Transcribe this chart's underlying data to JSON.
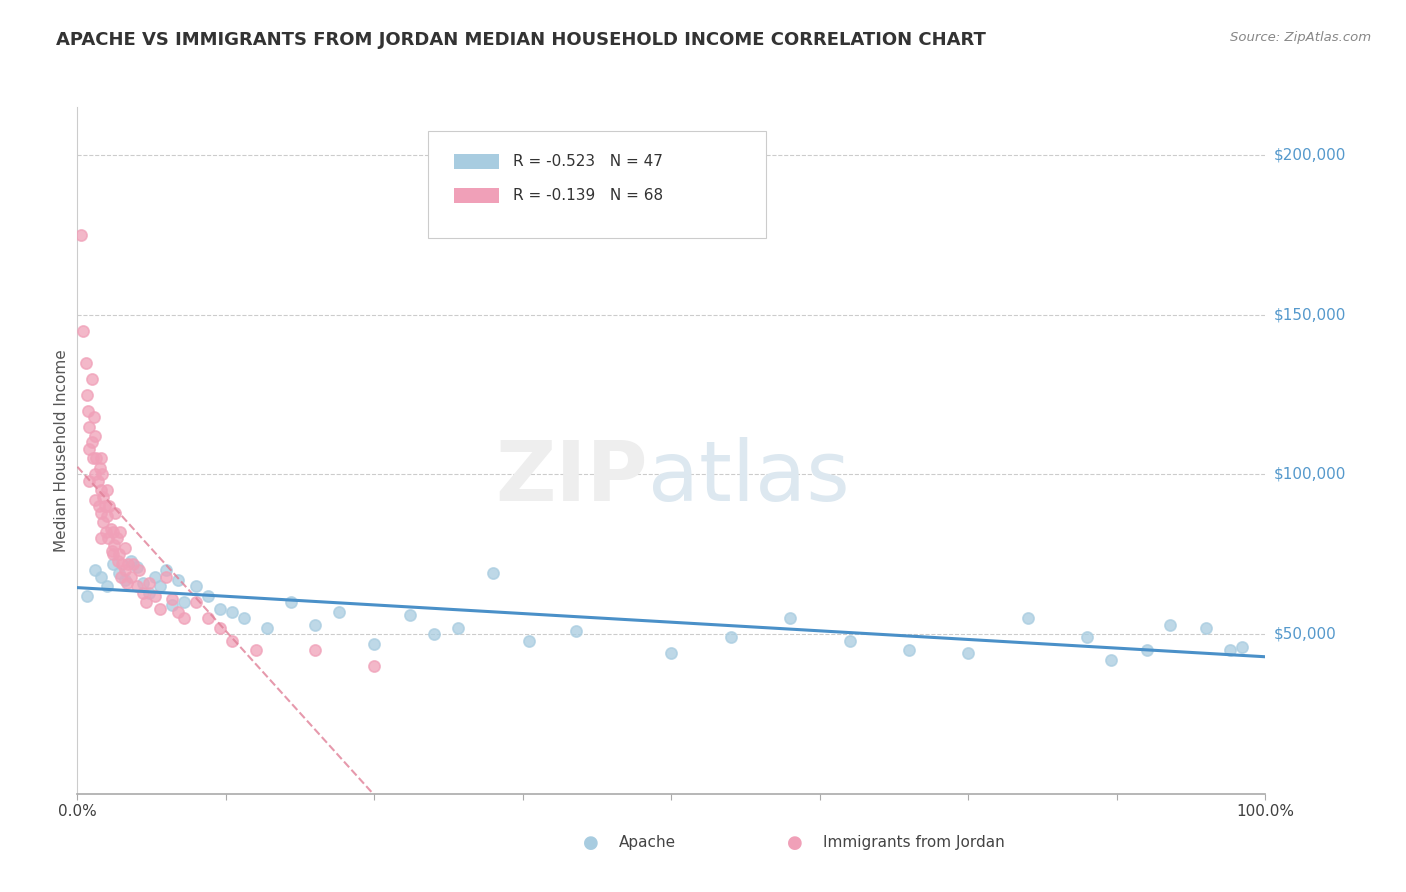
{
  "title": "APACHE VS IMMIGRANTS FROM JORDAN MEDIAN HOUSEHOLD INCOME CORRELATION CHART",
  "source": "Source: ZipAtlas.com",
  "ylabel": "Median Household Income",
  "y_tick_labels": [
    "$50,000",
    "$100,000",
    "$150,000",
    "$200,000"
  ],
  "y_tick_values": [
    50000,
    100000,
    150000,
    200000
  ],
  "apache_color": "#a8cce0",
  "jordan_color": "#f0a0b8",
  "apache_line_color": "#4a90c8",
  "jordan_line_color": "#e08098",
  "background_color": "#ffffff",
  "title_color": "#404040",
  "legend1_label": "R = -0.523   N = 47",
  "legend2_label": "R = -0.139   N = 68",
  "bottom_legend1": "Apache",
  "bottom_legend2": "Immigrants from Jordan",
  "apache_points_x": [
    0.008,
    0.015,
    0.02,
    0.025,
    0.03,
    0.035,
    0.04,
    0.045,
    0.05,
    0.055,
    0.06,
    0.065,
    0.07,
    0.075,
    0.08,
    0.085,
    0.09,
    0.1,
    0.11,
    0.12,
    0.13,
    0.14,
    0.16,
    0.18,
    0.2,
    0.22,
    0.25,
    0.28,
    0.3,
    0.32,
    0.35,
    0.38,
    0.42,
    0.5,
    0.55,
    0.6,
    0.65,
    0.7,
    0.75,
    0.8,
    0.85,
    0.87,
    0.9,
    0.92,
    0.95,
    0.97,
    0.98
  ],
  "apache_points_y": [
    62000,
    70000,
    68000,
    65000,
    72000,
    69000,
    67000,
    73000,
    71000,
    66000,
    63000,
    68000,
    65000,
    70000,
    59000,
    67000,
    60000,
    65000,
    62000,
    58000,
    57000,
    55000,
    52000,
    60000,
    53000,
    57000,
    47000,
    56000,
    50000,
    52000,
    69000,
    48000,
    51000,
    44000,
    49000,
    55000,
    48000,
    45000,
    44000,
    55000,
    49000,
    42000,
    45000,
    53000,
    52000,
    45000,
    46000
  ],
  "jordan_points_x": [
    0.003,
    0.005,
    0.007,
    0.008,
    0.009,
    0.01,
    0.01,
    0.01,
    0.012,
    0.012,
    0.013,
    0.014,
    0.015,
    0.015,
    0.015,
    0.016,
    0.017,
    0.018,
    0.019,
    0.02,
    0.02,
    0.02,
    0.02,
    0.021,
    0.022,
    0.022,
    0.023,
    0.024,
    0.025,
    0.025,
    0.026,
    0.027,
    0.028,
    0.029,
    0.03,
    0.03,
    0.031,
    0.032,
    0.033,
    0.034,
    0.035,
    0.036,
    0.037,
    0.038,
    0.04,
    0.04,
    0.042,
    0.043,
    0.045,
    0.047,
    0.05,
    0.052,
    0.055,
    0.058,
    0.06,
    0.065,
    0.07,
    0.075,
    0.08,
    0.085,
    0.09,
    0.1,
    0.11,
    0.12,
    0.13,
    0.15,
    0.2,
    0.25
  ],
  "jordan_points_y": [
    175000,
    145000,
    135000,
    125000,
    120000,
    115000,
    108000,
    98000,
    130000,
    110000,
    105000,
    118000,
    112000,
    100000,
    92000,
    105000,
    98000,
    90000,
    102000,
    105000,
    95000,
    88000,
    80000,
    100000,
    93000,
    85000,
    90000,
    82000,
    95000,
    87000,
    80000,
    90000,
    83000,
    76000,
    82000,
    75000,
    78000,
    88000,
    80000,
    73000,
    75000,
    82000,
    68000,
    72000,
    77000,
    70000,
    66000,
    72000,
    68000,
    72000,
    65000,
    70000,
    63000,
    60000,
    66000,
    62000,
    58000,
    68000,
    61000,
    57000,
    55000,
    60000,
    55000,
    52000,
    48000,
    45000,
    45000,
    40000
  ]
}
